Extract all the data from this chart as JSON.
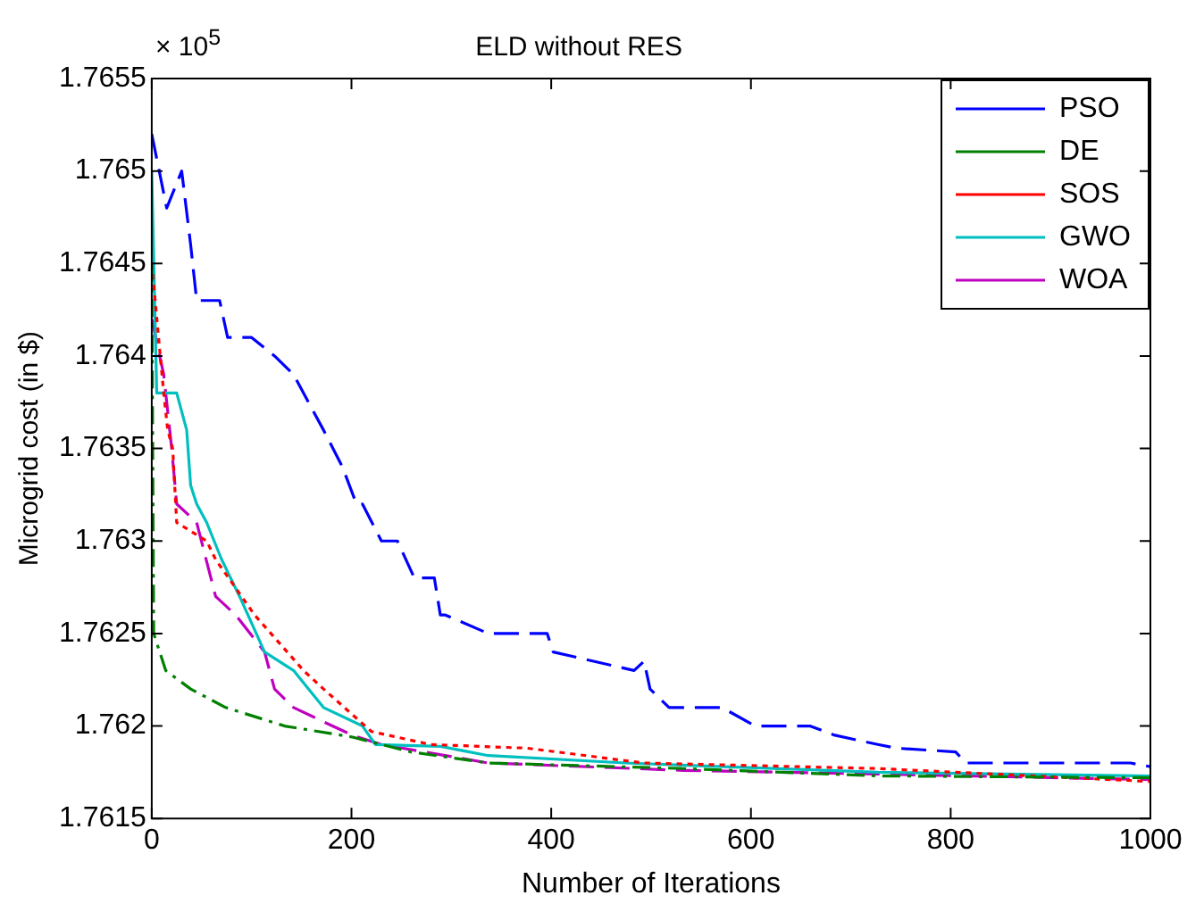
{
  "chart_data": {
    "type": "line",
    "title": "ELD without RES",
    "xlabel": "Number of Iterations",
    "ylabel": "Microgrid cost (in $)",
    "annotations": [
      "× 10$^{5}$"
    ],
    "xlim": [
      0,
      1000
    ],
    "xticks": [
      0,
      200,
      400,
      600,
      800,
      1000
    ],
    "ylim": [
      1.7615,
      1.7655
    ],
    "yticks": [
      1.7615,
      1.762,
      1.7625,
      1.763,
      1.7635,
      1.764,
      1.7645,
      1.765,
      1.7655
    ],
    "grid": false,
    "legend": "top right",
    "marker": "none",
    "series": [
      {
        "name": "PSO",
        "color": "#0000ff",
        "line_style": "dashed",
        "x": [
          0,
          15,
          30,
          39,
          45,
          68,
          76,
          100,
          123,
          142,
          162,
          172,
          191,
          205,
          211,
          230,
          246,
          263,
          283,
          289,
          294,
          337,
          396,
          402,
          483,
          493,
          499,
          518,
          571,
          604,
          659,
          684,
          727,
          746,
          805,
          815,
          903,
          932,
          980,
          1000
        ],
        "values": [
          1.7652,
          1.7648,
          1.765,
          1.7646,
          1.7643,
          1.7643,
          1.7641,
          1.7641,
          1.764,
          1.7639,
          1.7637,
          1.7636,
          1.7634,
          1.7632,
          1.7632,
          1.763,
          1.763,
          1.7628,
          1.7628,
          1.7626,
          1.7626,
          1.7625,
          1.7625,
          1.7624,
          1.7623,
          1.76235,
          1.7622,
          1.7621,
          1.7621,
          1.762,
          1.762,
          1.76195,
          1.7619,
          1.76188,
          1.76186,
          1.7618,
          1.7618,
          1.7618,
          1.7618,
          1.76178
        ]
      },
      {
        "name": "DE",
        "color": "#008000",
        "line_style": "dashdot",
        "x": [
          0,
          2,
          14,
          39,
          74,
          133,
          201,
          259,
          337,
          532,
          727,
          1000
        ],
        "values": [
          1.7645,
          1.7625,
          1.7623,
          1.7622,
          1.7621,
          1.762,
          1.76194,
          1.76186,
          1.7618,
          1.76177,
          1.76173,
          1.76172
        ]
      },
      {
        "name": "SOS",
        "color": "#ff0000",
        "line_style": "dotted",
        "x": [
          0,
          12,
          16,
          21,
          25,
          55,
          64,
          103,
          152,
          172,
          220,
          279,
          376,
          493,
          727,
          1000
        ],
        "values": [
          1.7645,
          1.7638,
          1.7636,
          1.7635,
          1.7631,
          1.763,
          1.7629,
          1.7626,
          1.7623,
          1.7622,
          1.76197,
          1.7619,
          1.76188,
          1.7618,
          1.76177,
          1.7617
        ]
      },
      {
        "name": "GWO",
        "color": "#00bfbf",
        "line_style": "solid",
        "x": [
          0,
          5,
          25,
          35,
          39,
          45,
          55,
          70,
          88,
          113,
          142,
          172,
          211,
          224,
          289,
          337,
          474,
          727,
          1000
        ],
        "values": [
          1.765,
          1.7638,
          1.7638,
          1.7636,
          1.7633,
          1.7632,
          1.7631,
          1.7629,
          1.7627,
          1.7624,
          1.7623,
          1.7621,
          1.762,
          1.7619,
          1.76189,
          1.76184,
          1.7618,
          1.76175,
          1.76173
        ]
      },
      {
        "name": "WOA",
        "color": "#bf00bf",
        "line_style": "dashed",
        "x": [
          0,
          12,
          16,
          20,
          25,
          45,
          64,
          84,
          113,
          123,
          142,
          181,
          201,
          230,
          337,
          532,
          727,
          1000
        ],
        "values": [
          1.7642,
          1.7639,
          1.7637,
          1.7635,
          1.7632,
          1.7631,
          1.7627,
          1.7626,
          1.7624,
          1.7622,
          1.7621,
          1.762,
          1.76195,
          1.7619,
          1.7618,
          1.76176,
          1.76174,
          1.76171
        ]
      }
    ]
  }
}
